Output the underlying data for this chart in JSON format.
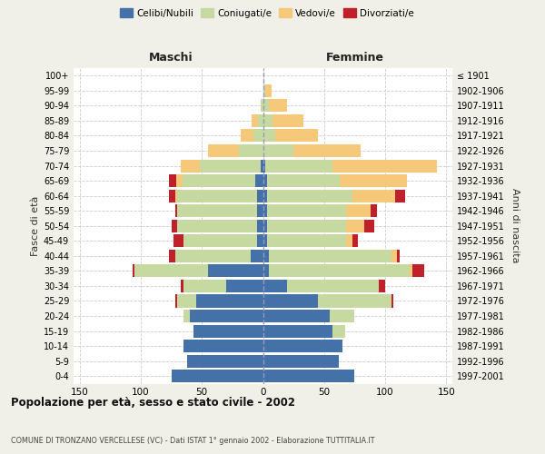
{
  "age_groups": [
    "0-4",
    "5-9",
    "10-14",
    "15-19",
    "20-24",
    "25-29",
    "30-34",
    "35-39",
    "40-44",
    "45-49",
    "50-54",
    "55-59",
    "60-64",
    "65-69",
    "70-74",
    "75-79",
    "80-84",
    "85-89",
    "90-94",
    "95-99",
    "100+"
  ],
  "birth_years": [
    "1997-2001",
    "1992-1996",
    "1987-1991",
    "1982-1986",
    "1977-1981",
    "1972-1976",
    "1967-1971",
    "1962-1966",
    "1957-1961",
    "1952-1956",
    "1947-1951",
    "1942-1946",
    "1937-1941",
    "1932-1936",
    "1927-1931",
    "1922-1926",
    "1917-1921",
    "1912-1916",
    "1907-1911",
    "1902-1906",
    "≤ 1901"
  ],
  "males": {
    "celibi": [
      75,
      62,
      65,
      57,
      60,
      55,
      30,
      45,
      10,
      5,
      5,
      5,
      5,
      6,
      2,
      0,
      0,
      0,
      0,
      0,
      0
    ],
    "coniugati": [
      0,
      0,
      0,
      0,
      5,
      15,
      35,
      60,
      62,
      60,
      65,
      65,
      65,
      60,
      50,
      20,
      8,
      4,
      2,
      0,
      0
    ],
    "vedovi": [
      0,
      0,
      0,
      0,
      0,
      0,
      0,
      0,
      0,
      0,
      0,
      0,
      2,
      5,
      15,
      25,
      10,
      5,
      0,
      0,
      0
    ],
    "divorziati": [
      0,
      0,
      0,
      0,
      0,
      2,
      2,
      2,
      5,
      8,
      5,
      2,
      5,
      6,
      0,
      0,
      0,
      0,
      0,
      0,
      0
    ]
  },
  "females": {
    "nubili": [
      75,
      62,
      65,
      57,
      55,
      45,
      20,
      5,
      5,
      3,
      3,
      3,
      3,
      3,
      2,
      0,
      0,
      0,
      0,
      0,
      0
    ],
    "coniugate": [
      0,
      0,
      0,
      10,
      20,
      60,
      75,
      115,
      100,
      65,
      65,
      65,
      70,
      60,
      55,
      25,
      10,
      8,
      5,
      2,
      0
    ],
    "vedove": [
      0,
      0,
      0,
      0,
      0,
      0,
      0,
      2,
      5,
      5,
      15,
      20,
      35,
      55,
      85,
      55,
      35,
      25,
      15,
      5,
      0
    ],
    "divorziate": [
      0,
      0,
      0,
      0,
      0,
      2,
      5,
      10,
      2,
      5,
      8,
      5,
      8,
      0,
      0,
      0,
      0,
      0,
      0,
      0,
      0
    ]
  },
  "colors": {
    "celibi_nubili": "#4472a8",
    "coniugati": "#c5d9a0",
    "vedovi": "#f5c87a",
    "divorziati": "#c0202a"
  },
  "xlim": 155,
  "title": "Popolazione per età, sesso e stato civile - 2002",
  "subtitle": "COMUNE DI TRONZANO VERCELLESE (VC) - Dati ISTAT 1° gennaio 2002 - Elaborazione TUTTITALIA.IT",
  "ylabel_left": "Fasce di età",
  "ylabel_right": "Anni di nascita",
  "maschi_label": "Maschi",
  "femmine_label": "Femmine",
  "legend_labels": [
    "Celibi/Nubili",
    "Coniugati/e",
    "Vedovi/e",
    "Divorziati/e"
  ],
  "bg_color": "#f0f0e8",
  "bar_bg_color": "#ffffff"
}
